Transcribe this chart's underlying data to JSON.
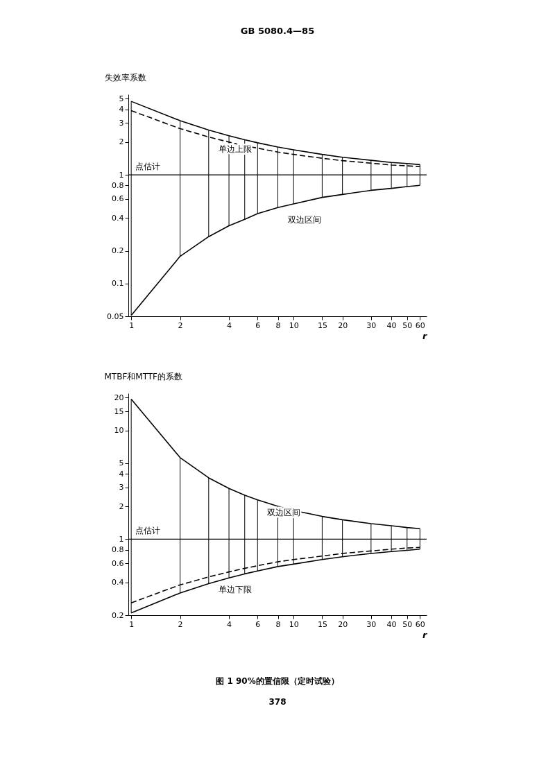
{
  "chart_data": [
    {
      "type": "line",
      "ylabel": "失效率系数",
      "xlabel": "r",
      "log": "xy",
      "grid": false,
      "x": [
        1,
        2,
        3,
        4,
        5,
        6,
        8,
        10,
        15,
        20,
        30,
        40,
        50,
        60
      ],
      "xlim": [
        0.96,
        66
      ],
      "xticks": [
        1,
        2,
        4,
        6,
        8,
        10,
        15,
        20,
        30,
        40,
        50,
        60
      ],
      "ylim": [
        0.05,
        5.5
      ],
      "yticks": [
        0.05,
        0.1,
        0.2,
        0.4,
        0.6,
        0.8,
        1,
        2,
        3,
        4,
        5
      ],
      "series": [
        {
          "color": "#000000",
          "line_style": "solid",
          "values": [
            4.74,
            3.15,
            2.58,
            2.29,
            2.1,
            1.97,
            1.8,
            1.7,
            1.54,
            1.45,
            1.36,
            1.3,
            1.27,
            1.24
          ]
        },
        {
          "color": "#000000",
          "line_style": "dashed",
          "values": [
            3.89,
            2.66,
            2.23,
            2.0,
            1.85,
            1.76,
            1.62,
            1.54,
            1.42,
            1.35,
            1.28,
            1.23,
            1.21,
            1.19
          ],
          "errors": [
            [
              0.051,
              4.74
            ],
            [
              0.178,
              3.15
            ],
            [
              0.27,
              2.58
            ],
            [
              0.34,
              2.29
            ],
            [
              0.39,
              2.1
            ],
            [
              0.44,
              1.97
            ],
            [
              0.5,
              1.8
            ],
            [
              0.54,
              1.7
            ],
            [
              0.62,
              1.54
            ],
            [
              0.66,
              1.45
            ],
            [
              0.72,
              1.36
            ],
            [
              0.75,
              1.3
            ],
            [
              0.78,
              1.27
            ],
            [
              0.8,
              1.24
            ]
          ]
        },
        {
          "color": "#000000",
          "line_style": "solid",
          "values": [
            0.051,
            0.178,
            0.27,
            0.34,
            0.39,
            0.44,
            0.5,
            0.54,
            0.62,
            0.66,
            0.72,
            0.75,
            0.78,
            0.8
          ]
        }
      ],
      "ref_lines": [
        {
          "axis": "y",
          "value": 1,
          "label": "点估计"
        }
      ],
      "annotations": [
        "GB 5080.4—85",
        {
          "text": "单边上限",
          "x": 3,
          "y": 2.23
        },
        {
          "text": "双边区间",
          "x": 8,
          "y": 0.5
        }
      ]
    },
    {
      "type": "line",
      "ylabel": "MTBF和MTTF的系数",
      "xlabel": "r",
      "log": "xy",
      "grid": false,
      "x": [
        1,
        2,
        3,
        4,
        5,
        6,
        8,
        10,
        15,
        20,
        30,
        40,
        50,
        60
      ],
      "xlim": [
        0.96,
        66
      ],
      "xticks": [
        1,
        2,
        4,
        6,
        8,
        10,
        15,
        20,
        30,
        40,
        50,
        60
      ],
      "ylim": [
        0.2,
        22
      ],
      "yticks": [
        0.2,
        0.4,
        0.6,
        0.8,
        1,
        2,
        3,
        4,
        5,
        10,
        15,
        20
      ],
      "series": [
        {
          "color": "#000000",
          "line_style": "solid",
          "values": [
            19.4,
            5.63,
            3.67,
            2.93,
            2.54,
            2.3,
            2.01,
            1.84,
            1.62,
            1.51,
            1.39,
            1.33,
            1.28,
            1.25
          ]
        },
        {
          "color": "#000000",
          "line_style": "dashed",
          "values": [
            0.26,
            0.38,
            0.45,
            0.5,
            0.54,
            0.57,
            0.62,
            0.65,
            0.7,
            0.74,
            0.78,
            0.81,
            0.83,
            0.84
          ],
          "errors": [
            [
              0.21,
              19.4
            ],
            [
              0.32,
              5.63
            ],
            [
              0.39,
              3.67
            ],
            [
              0.44,
              2.93
            ],
            [
              0.48,
              2.54
            ],
            [
              0.51,
              2.3
            ],
            [
              0.56,
              2.01
            ],
            [
              0.59,
              1.84
            ],
            [
              0.65,
              1.62
            ],
            [
              0.69,
              1.51
            ],
            [
              0.74,
              1.39
            ],
            [
              0.77,
              1.33
            ],
            [
              0.79,
              1.28
            ],
            [
              0.81,
              1.25
            ]
          ]
        },
        {
          "color": "#000000",
          "line_style": "solid",
          "values": [
            0.21,
            0.32,
            0.39,
            0.44,
            0.48,
            0.51,
            0.56,
            0.59,
            0.65,
            0.69,
            0.74,
            0.77,
            0.79,
            0.81
          ]
        }
      ],
      "ref_lines": [
        {
          "axis": "y",
          "value": 1,
          "label": "点估计"
        }
      ],
      "annotations": [
        {
          "text": "双边区间",
          "x": 6,
          "y": 2.3
        },
        {
          "text": "单边下限",
          "x": 3,
          "y": 0.45
        },
        "图 1  90%的置信限（定时试验）",
        "378"
      ]
    }
  ]
}
